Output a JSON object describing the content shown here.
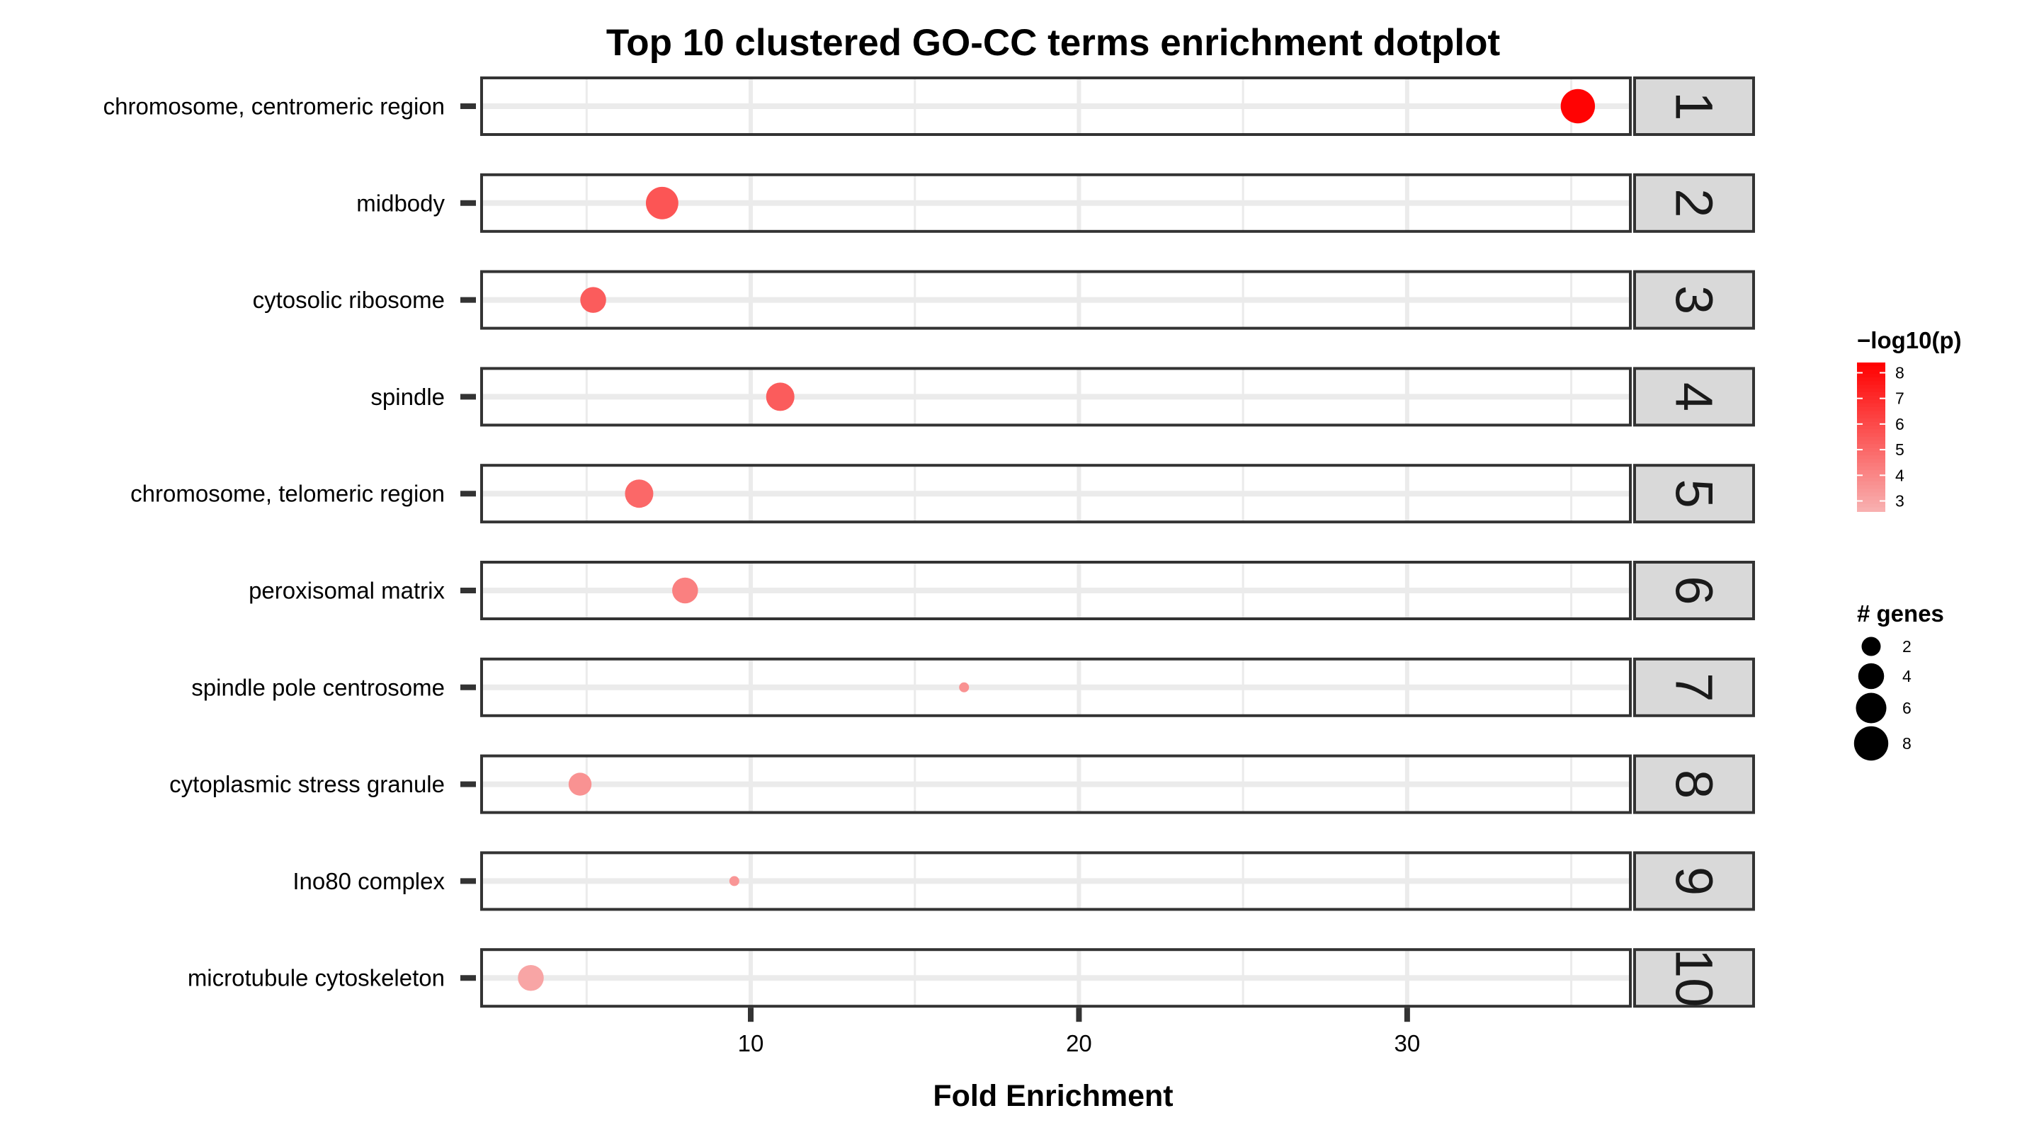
{
  "chart_data": {
    "type": "scatter",
    "title": "Top 10 clustered GO-CC terms enrichment dotplot",
    "xlabel": "Fold Enrichment",
    "ylabel": "",
    "xlim": [
      1.8,
      36.8
    ],
    "x_ticks": [
      10,
      20,
      30
    ],
    "grid": true,
    "facet_labels": [
      "1",
      "2",
      "3",
      "4",
      "5",
      "6",
      "7",
      "8",
      "9",
      "10"
    ],
    "categories": [
      "chromosome, centromeric region",
      "midbody",
      "cytosolic ribosome",
      "spindle",
      "chromosome, telomeric region",
      "peroxisomal matrix",
      "spindle pole centrosome",
      "cytoplasmic stress granule",
      "Ino80 complex",
      "microtubule cytoskeleton"
    ],
    "points": [
      {
        "term": "chromosome, centromeric region",
        "fold_enrichment": 35.2,
        "neg_log10_p": 8.3,
        "genes": 8
      },
      {
        "term": "midbody",
        "fold_enrichment": 7.3,
        "neg_log10_p": 5.6,
        "genes": 7
      },
      {
        "term": "cytosolic ribosome",
        "fold_enrichment": 5.2,
        "neg_log10_p": 5.4,
        "genes": 4
      },
      {
        "term": "spindle",
        "fold_enrichment": 10.9,
        "neg_log10_p": 5.4,
        "genes": 5
      },
      {
        "term": "chromosome, telomeric region",
        "fold_enrichment": 6.6,
        "neg_log10_p": 5.0,
        "genes": 5
      },
      {
        "term": "peroxisomal matrix",
        "fold_enrichment": 8.0,
        "neg_log10_p": 4.2,
        "genes": 4
      },
      {
        "term": "spindle pole centrosome",
        "fold_enrichment": 16.5,
        "neg_log10_p": 3.6,
        "genes": 1
      },
      {
        "term": "cytoplasmic stress granule",
        "fold_enrichment": 4.8,
        "neg_log10_p": 3.6,
        "genes": 3
      },
      {
        "term": "Ino80 complex",
        "fold_enrichment": 9.5,
        "neg_log10_p": 3.5,
        "genes": 1
      },
      {
        "term": "microtubule cytoskeleton",
        "fold_enrichment": 3.3,
        "neg_log10_p": 3.0,
        "genes": 4
      }
    ],
    "color_legend": {
      "title": "−log10(p)",
      "ticks": [
        8,
        7,
        6,
        5,
        4,
        3
      ],
      "range": [
        2.6,
        8.4
      ],
      "low_color": "#f8b1b1",
      "high_color": "#ff0000"
    },
    "size_legend": {
      "title": "# genes",
      "ticks": [
        2,
        4,
        6,
        8
      ]
    },
    "colors": {
      "panel_border": "#333333",
      "strip_fill": "#d9d9d9",
      "gridline": "#ebebeb",
      "text": "#000000"
    }
  }
}
